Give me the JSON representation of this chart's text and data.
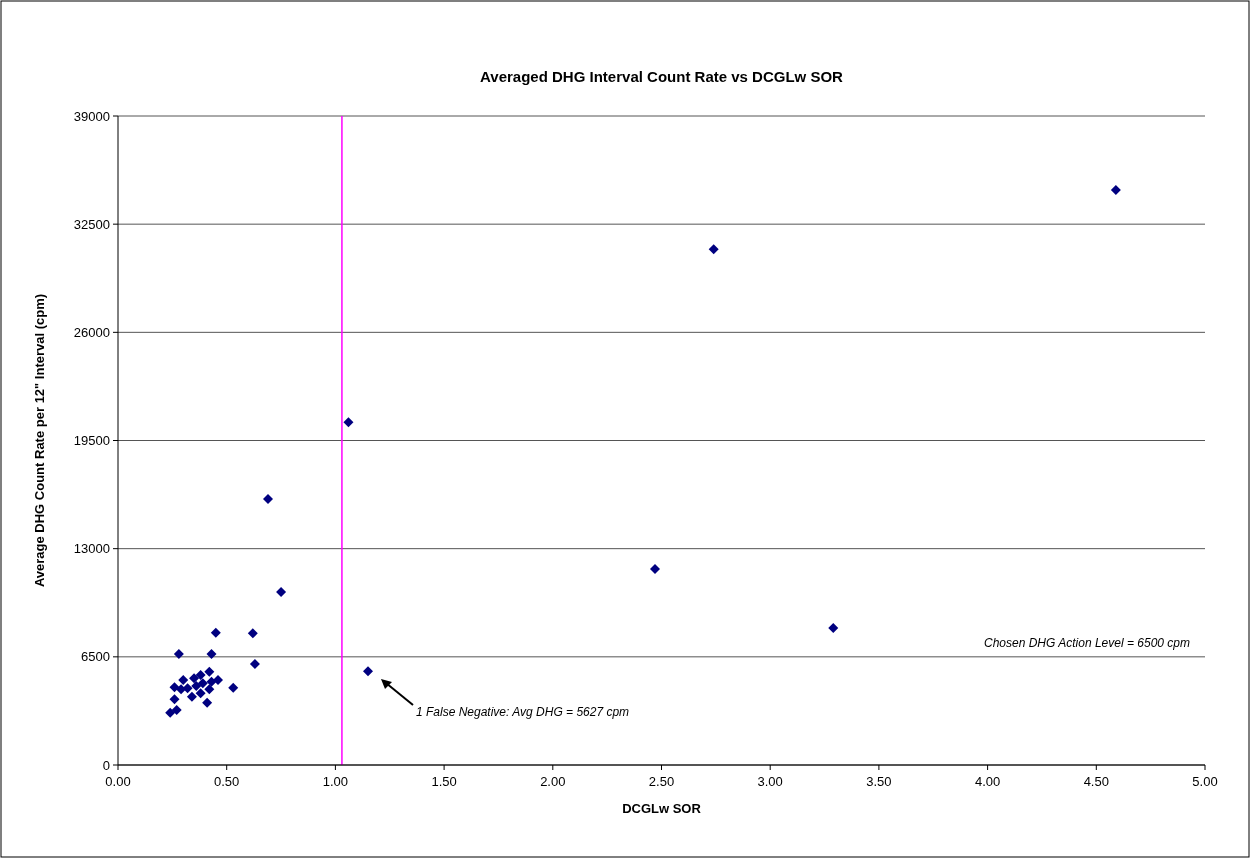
{
  "chart_data": {
    "type": "scatter",
    "title": "Averaged DHG Interval Count Rate vs DCGLw SOR",
    "xlabel": "DCGLw SOR",
    "ylabel": "Average DHG Count Rate per 12\" Interval (cpm)",
    "x": [
      4.59,
      2.74,
      1.06,
      0.69,
      0.75,
      2.47,
      3.29,
      1.15,
      0.45,
      0.62,
      0.28,
      0.43,
      0.63,
      0.53,
      0.26,
      0.3,
      0.35,
      0.38,
      0.42,
      0.46,
      0.43,
      0.39,
      0.36,
      0.32,
      0.29,
      0.42,
      0.34,
      0.38,
      0.26,
      0.41,
      0.24,
      0.27
    ],
    "series": [
      {
        "color": "#000080",
        "values": [
          34550,
          31000,
          20600,
          15980,
          10400,
          11780,
          8230,
          5630,
          7950,
          7910,
          6670,
          6670,
          6070,
          4640,
          4670,
          5110,
          5210,
          5410,
          5610,
          5110,
          5010,
          4910,
          4750,
          4610,
          4550,
          4550,
          4100,
          4310,
          3950,
          3740,
          3140,
          3300
        ]
      }
    ],
    "xlim": [
      0,
      5
    ],
    "xticks": [
      {
        "value": 0,
        "label": "0.00"
      },
      {
        "value": 0.5,
        "label": "0.50"
      },
      {
        "value": 1,
        "label": "1.00"
      },
      {
        "value": 1.5,
        "label": "1.50"
      },
      {
        "value": 2,
        "label": "2.00"
      },
      {
        "value": 2.5,
        "label": "2.50"
      },
      {
        "value": 3,
        "label": "3.00"
      },
      {
        "value": 3.5,
        "label": "3.50"
      },
      {
        "value": 4,
        "label": "4.00"
      },
      {
        "value": 4.5,
        "label": "4.50"
      },
      {
        "value": 5,
        "label": "5.00"
      }
    ],
    "ylim": [
      0,
      39000
    ],
    "yticks": [
      0,
      6500,
      13000,
      19500,
      26000,
      32500,
      39000
    ],
    "grid": "y",
    "marker": "diamond",
    "ref_lines": [
      {
        "axis": "x",
        "value": 1.03,
        "color": "#ff00ff"
      }
    ],
    "annotations": [
      "Chosen DHG Action Level = 6500 cpm",
      "1 False Negative: Avg DHG = 5627 cpm"
    ]
  }
}
